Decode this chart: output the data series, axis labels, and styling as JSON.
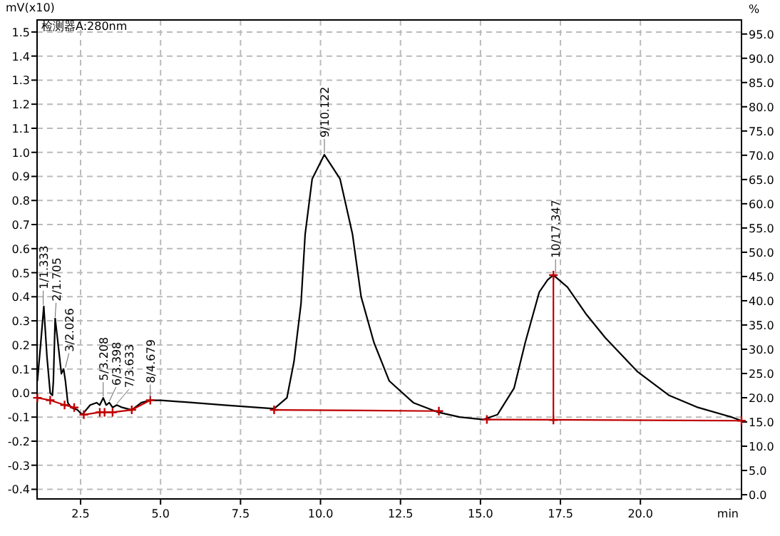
{
  "chart_data": {
    "type": "line",
    "xlabel": "min",
    "ylabel": "mV(x10)",
    "y2label": "%",
    "xlim": [
      1.14,
      23.16
    ],
    "ylim": [
      -0.44,
      1.55
    ],
    "y2lim": [
      -0.87,
      97.9
    ],
    "xticks": [
      {
        "value": 2.5,
        "label": "2.5"
      },
      {
        "value": 5,
        "label": "5.0"
      },
      {
        "value": 7.5,
        "label": "7.5"
      },
      {
        "value": 10,
        "label": "10.0"
      },
      {
        "value": 12.5,
        "label": "12.5"
      },
      {
        "value": 15,
        "label": "15.0"
      },
      {
        "value": 17.5,
        "label": "17.5"
      },
      {
        "value": 20,
        "label": "20.0"
      }
    ],
    "yticks": [
      -0.4,
      -0.3,
      -0.2,
      -0.1,
      {
        "value": 0,
        "label": "0.0"
      },
      0.1,
      0.2,
      0.3,
      0.4,
      0.5,
      0.6,
      0.7,
      0.8,
      0.9,
      {
        "value": 1,
        "label": "1.0"
      },
      1.1,
      1.2,
      1.3,
      1.4,
      1.5
    ],
    "y2ticks": [
      {
        "value": 0,
        "label": "0.0"
      },
      {
        "value": 5,
        "label": "5.0"
      },
      {
        "value": 10,
        "label": "10.0"
      },
      {
        "value": 15,
        "label": "15.0"
      },
      {
        "value": 20,
        "label": "20.0"
      },
      {
        "value": 25,
        "label": "25.0"
      },
      {
        "value": 30,
        "label": "30.0"
      },
      {
        "value": 35,
        "label": "35.0"
      },
      {
        "value": 40,
        "label": "40.0"
      },
      {
        "value": 45,
        "label": "45.0"
      },
      {
        "value": 50,
        "label": "50.0"
      },
      {
        "value": 55,
        "label": "55.0"
      },
      {
        "value": 60,
        "label": "60.0"
      },
      {
        "value": 65,
        "label": "65.0"
      },
      {
        "value": 70,
        "label": "70.0"
      },
      {
        "value": 75,
        "label": "75.0"
      },
      {
        "value": 80,
        "label": "80.0"
      },
      {
        "value": 85,
        "label": "85.0"
      },
      {
        "value": 90,
        "label": "90.0"
      },
      {
        "value": 95,
        "label": "95.0"
      }
    ],
    "grid": true,
    "series": [
      {
        "color": "#000000",
        "marker": "none",
        "x": [
          1.15,
          1.25,
          1.35,
          1.45,
          1.55,
          1.62,
          1.65,
          1.705,
          1.8,
          1.9,
          1.97,
          2.026,
          2.1,
          2.2,
          2.4,
          2.55,
          2.8,
          3.0,
          3.1,
          3.208,
          3.3,
          3.398,
          3.5,
          3.633,
          3.8,
          4.1,
          4.4,
          4.679,
          5.0,
          6.0,
          7.0,
          8.0,
          8.55,
          8.95,
          9.17,
          9.39,
          9.52,
          9.74,
          10.12,
          10.61,
          11.0,
          11.27,
          11.67,
          12.15,
          12.9,
          13.68,
          14.35,
          15.09,
          15.53,
          16.05,
          16.4,
          16.84,
          17.1,
          17.28,
          17.72,
          18.29,
          18.9,
          19.9,
          20.9,
          21.8,
          22.85,
          23.16
        ],
        "values": [
          0.05,
          0.2,
          0.36,
          0.15,
          0.0,
          -0.01,
          0.05,
          0.31,
          0.2,
          0.08,
          0.1,
          0.05,
          -0.04,
          -0.06,
          -0.07,
          -0.09,
          -0.05,
          -0.04,
          -0.05,
          -0.02,
          -0.05,
          -0.04,
          -0.06,
          -0.05,
          -0.06,
          -0.07,
          -0.04,
          -0.03,
          -0.03,
          -0.04,
          -0.05,
          -0.06,
          -0.065,
          -0.02,
          0.13,
          0.37,
          0.66,
          0.89,
          0.99,
          0.89,
          0.66,
          0.4,
          0.21,
          0.05,
          -0.04,
          -0.08,
          -0.1,
          -0.11,
          -0.09,
          0.02,
          0.21,
          0.42,
          0.47,
          0.49,
          0.44,
          0.33,
          0.23,
          0.09,
          -0.01,
          -0.06,
          -0.1,
          -0.115
        ]
      },
      {
        "color": "#c00000",
        "marker": "cross",
        "x": [
          1.15,
          1.55,
          2.0,
          2.3,
          null,
          2.6,
          3.1,
          3.25,
          3.5,
          4.1,
          4.679,
          null,
          8.55,
          13.7,
          null,
          15.2,
          23.16,
          null,
          17.28,
          17.28
        ],
        "values": [
          -0.02,
          -0.03,
          -0.05,
          -0.06,
          null,
          -0.09,
          -0.08,
          -0.08,
          -0.08,
          -0.07,
          -0.03,
          null,
          -0.07,
          -0.075,
          null,
          -0.11,
          -0.115,
          null,
          -0.112,
          0.49
        ]
      }
    ],
    "annotations": [
      "检测器A:280nm",
      {
        "text": "1/1.333",
        "x": 1.333,
        "y": 0.36
      },
      {
        "text": "2/1.705",
        "x": 1.705,
        "y": 0.31
      },
      {
        "text": "3/2.026",
        "x": 2.026,
        "y": 0.1
      },
      {
        "text": "5/3.208",
        "x": 3.208,
        "y": -0.02
      },
      {
        "text": "6/3.398",
        "x": 3.398,
        "y": -0.04
      },
      {
        "text": "7/3.633",
        "x": 3.633,
        "y": -0.05
      },
      {
        "text": "8/4.679",
        "x": 4.679,
        "y": -0.03
      },
      {
        "text": "9/10.122",
        "x": 10.122,
        "y": 0.99
      },
      {
        "text": "10/17.347",
        "x": 17.347,
        "y": 0.49
      }
    ]
  }
}
